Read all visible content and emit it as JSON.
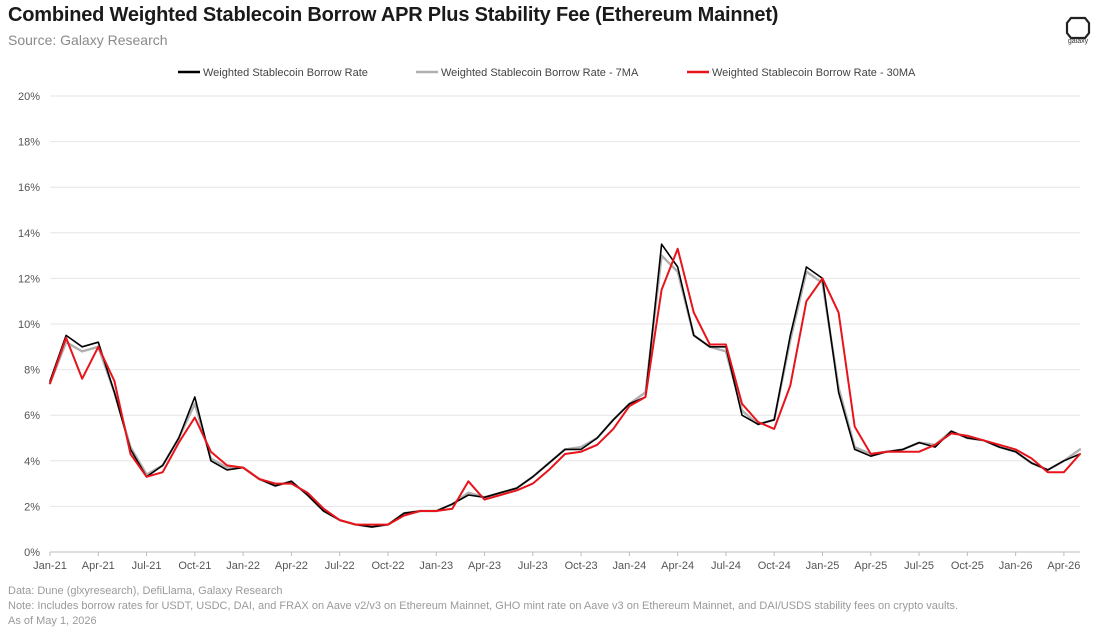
{
  "title": "Combined Weighted Stablecoin Borrow APR Plus Stability Fee (Ethereum Mainnet)",
  "subtitle": "Source: Galaxy Research",
  "brand": "galaxy",
  "footnotes": {
    "data": "Data: Dune (glxyresearch), DefiLlama, Galaxy Research",
    "note": "Note: Includes borrow rates for USDT, USDC, DAI, and FRAX on Aave v2/v3 on Ethereum Mainnet, GHO mint rate on Aave v3 on Ethereum Mainnet, and DAI/USDS stability fees on crypto vaults.",
    "asof": "As of May 1, 2026"
  },
  "chart_data": {
    "type": "line",
    "xlabel": "",
    "ylabel": "",
    "ylim": [
      0,
      20
    ],
    "grid": true,
    "legend_position": "top",
    "x_ticks": [
      "Jan-21",
      "Apr-21",
      "Jul-21",
      "Oct-21",
      "Jan-22",
      "Apr-22",
      "Jul-22",
      "Oct-22",
      "Jan-23",
      "Apr-23",
      "Jul-23",
      "Oct-23",
      "Jan-24",
      "Apr-24",
      "Jul-24",
      "Oct-24",
      "Jan-25",
      "Apr-25",
      "Jul-25",
      "Oct-25",
      "Jan-26",
      "Apr-26"
    ],
    "y_ticks": [
      "0%",
      "2%",
      "4%",
      "6%",
      "8%",
      "10%",
      "12%",
      "14%",
      "16%",
      "18%",
      "20%"
    ],
    "series": [
      {
        "name": "Weighted Stablecoin Borrow Rate",
        "color": "#000000",
        "x": [
          "2021-01",
          "2021-02",
          "2021-03",
          "2021-04",
          "2021-05",
          "2021-06",
          "2021-07",
          "2021-08",
          "2021-09",
          "2021-10",
          "2021-11",
          "2021-12",
          "2022-01",
          "2022-02",
          "2022-03",
          "2022-04",
          "2022-05",
          "2022-06",
          "2022-07",
          "2022-08",
          "2022-09",
          "2022-10",
          "2022-11",
          "2022-12",
          "2023-01",
          "2023-02",
          "2023-03",
          "2023-04",
          "2023-05",
          "2023-06",
          "2023-07",
          "2023-08",
          "2023-09",
          "2023-10",
          "2023-11",
          "2023-12",
          "2024-01",
          "2024-02",
          "2024-03",
          "2024-04",
          "2024-05",
          "2024-06",
          "2024-07",
          "2024-08",
          "2024-09",
          "2024-10",
          "2024-11",
          "2024-12",
          "2025-01",
          "2025-02",
          "2025-03",
          "2025-04",
          "2025-05",
          "2025-06",
          "2025-07",
          "2025-08",
          "2025-09",
          "2025-10",
          "2025-11",
          "2025-12",
          "2026-01",
          "2026-02",
          "2026-03",
          "2026-04",
          "2026-05"
        ],
        "values": [
          7.5,
          9.5,
          9.0,
          9.2,
          7.0,
          4.5,
          3.3,
          3.8,
          5.0,
          6.8,
          4.0,
          3.6,
          3.7,
          3.2,
          2.9,
          3.1,
          2.5,
          1.8,
          1.4,
          1.2,
          1.1,
          1.2,
          1.7,
          1.8,
          1.8,
          2.1,
          2.5,
          2.4,
          2.6,
          2.8,
          3.3,
          3.9,
          4.5,
          4.5,
          5.0,
          5.8,
          6.5,
          6.8,
          13.5,
          12.5,
          9.5,
          9.0,
          9.0,
          6.0,
          5.6,
          5.8,
          9.5,
          12.5,
          12.0,
          7.0,
          4.5,
          4.2,
          4.4,
          4.5,
          4.8,
          4.6,
          5.3,
          5.0,
          4.9,
          4.6,
          4.4,
          3.9,
          3.6,
          4.0,
          4.3
        ]
      },
      {
        "name": "Weighted Stablecoin Borrow Rate - 7MA",
        "color": "#b0b0b0",
        "x": [
          "2021-01",
          "2021-02",
          "2021-03",
          "2021-04",
          "2021-05",
          "2021-06",
          "2021-07",
          "2021-08",
          "2021-09",
          "2021-10",
          "2021-11",
          "2021-12",
          "2022-01",
          "2022-02",
          "2022-03",
          "2022-04",
          "2022-05",
          "2022-06",
          "2022-07",
          "2022-08",
          "2022-09",
          "2022-10",
          "2022-11",
          "2022-12",
          "2023-01",
          "2023-02",
          "2023-03",
          "2023-04",
          "2023-05",
          "2023-06",
          "2023-07",
          "2023-08",
          "2023-09",
          "2023-10",
          "2023-11",
          "2023-12",
          "2024-01",
          "2024-02",
          "2024-03",
          "2024-04",
          "2024-05",
          "2024-06",
          "2024-07",
          "2024-08",
          "2024-09",
          "2024-10",
          "2024-11",
          "2024-12",
          "2025-01",
          "2025-02",
          "2025-03",
          "2025-04",
          "2025-05",
          "2025-06",
          "2025-07",
          "2025-08",
          "2025-09",
          "2025-10",
          "2025-11",
          "2025-12",
          "2026-01",
          "2026-02",
          "2026-03",
          "2026-04",
          "2026-05"
        ],
        "values": [
          7.4,
          9.2,
          8.8,
          9.0,
          7.0,
          4.6,
          3.4,
          3.8,
          5.0,
          6.5,
          4.1,
          3.7,
          3.7,
          3.2,
          2.9,
          3.1,
          2.5,
          1.8,
          1.4,
          1.2,
          1.1,
          1.2,
          1.7,
          1.8,
          1.8,
          2.1,
          2.6,
          2.4,
          2.6,
          2.8,
          3.3,
          3.9,
          4.5,
          4.6,
          5.0,
          5.8,
          6.5,
          7.0,
          13.0,
          12.3,
          9.5,
          9.0,
          8.8,
          6.2,
          5.6,
          5.8,
          9.3,
          12.3,
          11.8,
          7.2,
          4.6,
          4.3,
          4.4,
          4.5,
          4.8,
          4.7,
          5.3,
          5.0,
          4.9,
          4.6,
          4.4,
          3.9,
          3.6,
          4.0,
          4.5
        ]
      },
      {
        "name": "Weighted Stablecoin Borrow Rate - 30MA",
        "color": "#e8141b",
        "x": [
          "2021-01",
          "2021-02",
          "2021-03",
          "2021-04",
          "2021-05",
          "2021-06",
          "2021-07",
          "2021-08",
          "2021-09",
          "2021-10",
          "2021-11",
          "2021-12",
          "2022-01",
          "2022-02",
          "2022-03",
          "2022-04",
          "2022-05",
          "2022-06",
          "2022-07",
          "2022-08",
          "2022-09",
          "2022-10",
          "2022-11",
          "2022-12",
          "2023-01",
          "2023-02",
          "2023-03",
          "2023-04",
          "2023-05",
          "2023-06",
          "2023-07",
          "2023-08",
          "2023-09",
          "2023-10",
          "2023-11",
          "2023-12",
          "2024-01",
          "2024-02",
          "2024-03",
          "2024-04",
          "2024-05",
          "2024-06",
          "2024-07",
          "2024-08",
          "2024-09",
          "2024-10",
          "2024-11",
          "2024-12",
          "2025-01",
          "2025-02",
          "2025-03",
          "2025-04",
          "2025-05",
          "2025-06",
          "2025-07",
          "2025-08",
          "2025-09",
          "2025-10",
          "2025-11",
          "2025-12",
          "2026-01",
          "2026-02",
          "2026-03",
          "2026-04",
          "2026-05"
        ],
        "values": [
          7.4,
          9.4,
          7.6,
          9.0,
          7.5,
          4.3,
          3.3,
          3.5,
          4.8,
          5.9,
          4.4,
          3.8,
          3.7,
          3.2,
          3.0,
          3.0,
          2.6,
          1.9,
          1.4,
          1.2,
          1.2,
          1.2,
          1.6,
          1.8,
          1.8,
          1.9,
          3.1,
          2.3,
          2.5,
          2.7,
          3.0,
          3.6,
          4.3,
          4.4,
          4.7,
          5.4,
          6.4,
          6.8,
          11.5,
          13.3,
          10.5,
          9.1,
          9.1,
          6.5,
          5.7,
          5.4,
          7.3,
          11.0,
          12.0,
          10.5,
          5.5,
          4.3,
          4.4,
          4.4,
          4.4,
          4.7,
          5.2,
          5.1,
          4.9,
          4.7,
          4.5,
          4.1,
          3.5,
          3.5,
          4.3
        ]
      }
    ]
  }
}
